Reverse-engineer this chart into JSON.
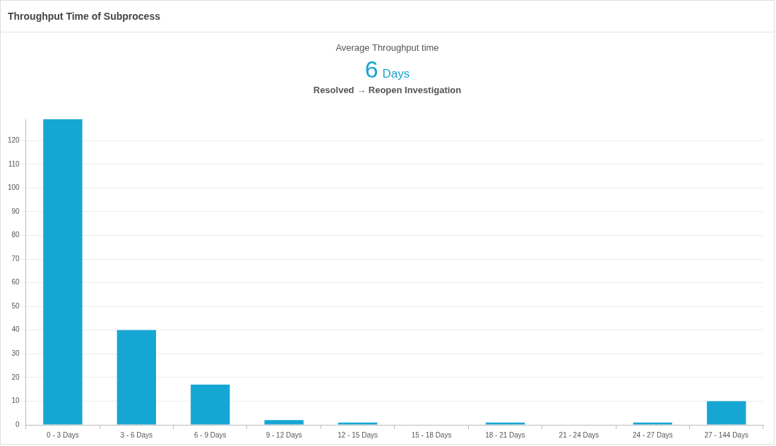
{
  "chart_data": {
    "type": "bar",
    "title": "Throughput Time of Subprocess",
    "annotations": [
      "Average Throughput time",
      "6 Days",
      "Resolved → Reopen Investigation"
    ],
    "categories": [
      "0 - 3 Days",
      "3 - 6 Days",
      "6 - 9 Days",
      "9 - 12 Days",
      "12 - 15 Days",
      "15 - 18 Days",
      "18 - 21 Days",
      "21 - 24 Days",
      "24 - 27 Days",
      "27 - 144 Days"
    ],
    "values": [
      129,
      40,
      17,
      2,
      1,
      0,
      1,
      0,
      1,
      10
    ],
    "color": "#16a6d4",
    "ylim": [
      0,
      129
    ],
    "yticks": [
      0,
      10,
      20,
      30,
      40,
      50,
      60,
      70,
      80,
      90,
      100,
      110,
      120
    ],
    "grid": "y",
    "legend": false
  }
}
